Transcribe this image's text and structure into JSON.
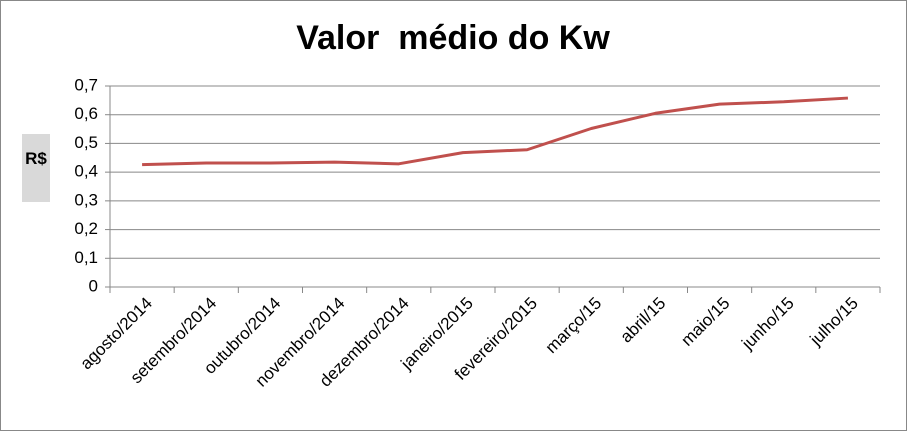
{
  "chart_data": {
    "type": "line",
    "title": "Valor  médio do Kw",
    "y_label": "R$",
    "categories": [
      "agosto/2014",
      "setembro/2014",
      "outubro/2014",
      "novembro/2014",
      "dezembro/2014",
      "janeiro/2015",
      "fevereiro/2015",
      "março/15",
      "abril/15",
      "maio/15",
      "junho/15",
      "julho/15"
    ],
    "series": [
      {
        "name": "Valor médio",
        "color": "#c0504d",
        "values": [
          0.426,
          0.432,
          0.432,
          0.435,
          0.429,
          0.468,
          0.478,
          0.552,
          0.605,
          0.637,
          0.645,
          0.658
        ]
      }
    ],
    "ylim": [
      0,
      0.7
    ],
    "yticks": [
      0,
      {
        "value": 0.1,
        "label": "0,1"
      },
      {
        "value": 0.2,
        "label": "0,2"
      },
      {
        "value": 0.3,
        "label": "0,3"
      },
      {
        "value": 0.4,
        "label": "0,4"
      },
      {
        "value": 0.5,
        "label": "0,5"
      },
      {
        "value": 0.6,
        "label": "0,6"
      },
      {
        "value": 0.7,
        "label": "0,7"
      }
    ],
    "grid": true
  }
}
